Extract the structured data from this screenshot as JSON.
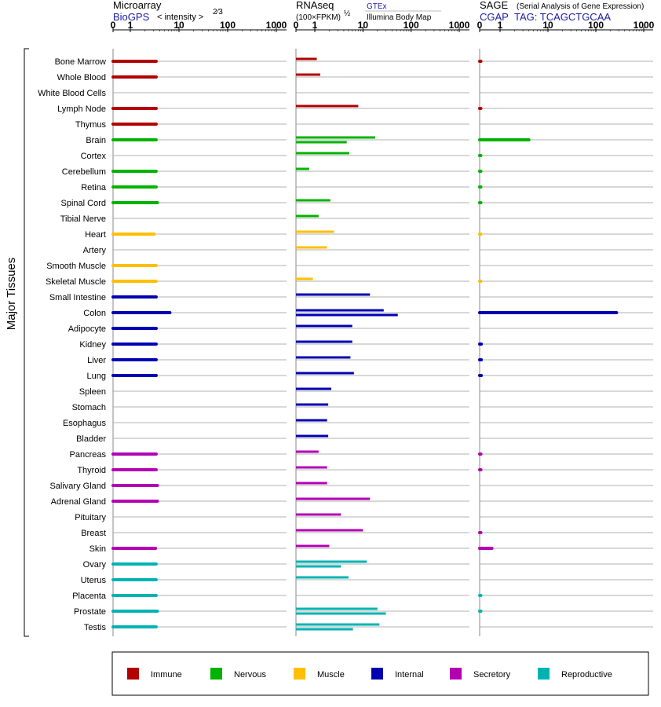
{
  "panels": {
    "microarray": {
      "title": "Microarray",
      "source": "BioGPS",
      "metric": "< intensity >",
      "metric_sup": "2⁄3"
    },
    "rnaseq": {
      "title": "RNAseq",
      "metric": "(100×FPKM)",
      "metric_sup": "½",
      "source_a": "GTEx",
      "source_b": "Illumina Body Map"
    },
    "sage": {
      "title": "SAGE",
      "subtitle": "(Serial Analysis of Gene Expression)",
      "source": "CGAP",
      "tag": "TAG: TCAGCTGCAA"
    }
  },
  "ylabel": "Major Tissues",
  "tick_labels": [
    "0",
    "1",
    "10",
    "100",
    "1000"
  ],
  "colors": {
    "Immune": "#b30000",
    "Nervous": "#00b300",
    "Muscle": "#ffbf00",
    "Internal": "#0000b3",
    "Secretory": "#b300b3",
    "Reproductive": "#00b3b3"
  },
  "legend": [
    {
      "label": "Immune",
      "color": "#b30000"
    },
    {
      "label": "Nervous",
      "color": "#00b300"
    },
    {
      "label": "Muscle",
      "color": "#ffbf00"
    },
    {
      "label": "Internal",
      "color": "#0000b3"
    },
    {
      "label": "Secretory",
      "color": "#b300b3"
    },
    {
      "label": "Reproductive",
      "color": "#00b3b3"
    }
  ],
  "chart_data": {
    "type": "bar",
    "scale": "transformed axis with ticks 0, 1, 10, 100, 1000",
    "categories": [
      "Bone Marrow",
      "Whole Blood",
      "White Blood Cells",
      "Lymph Node",
      "Thymus",
      "Brain",
      "Cortex",
      "Cerebellum",
      "Retina",
      "Spinal Cord",
      "Tibial Nerve",
      "Heart",
      "Artery",
      "Smooth Muscle",
      "Skeletal Muscle",
      "Small Intestine",
      "Colon",
      "Adipocyte",
      "Kidney",
      "Liver",
      "Lung",
      "Spleen",
      "Stomach",
      "Esophagus",
      "Bladder",
      "Pancreas",
      "Thyroid",
      "Salivary Gland",
      "Adrenal Gland",
      "Pituitary",
      "Breast",
      "Skin",
      "Ovary",
      "Uterus",
      "Placenta",
      "Prostate",
      "Testis"
    ],
    "groups": [
      "Immune",
      "Immune",
      "Immune",
      "Immune",
      "Immune",
      "Nervous",
      "Nervous",
      "Nervous",
      "Nervous",
      "Nervous",
      "Nervous",
      "Muscle",
      "Muscle",
      "Muscle",
      "Muscle",
      "Internal",
      "Internal",
      "Internal",
      "Internal",
      "Internal",
      "Internal",
      "Internal",
      "Internal",
      "Internal",
      "Internal",
      "Secretory",
      "Secretory",
      "Secretory",
      "Secretory",
      "Secretory",
      "Secretory",
      "Secretory",
      "Reproductive",
      "Reproductive",
      "Reproductive",
      "Reproductive",
      "Reproductive"
    ],
    "microarray": [
      3.4,
      3.4,
      null,
      3.4,
      3.4,
      3.4,
      null,
      3.4,
      3.4,
      3.6,
      null,
      3.1,
      null,
      3.4,
      3.4,
      3.4,
      6.5,
      3.4,
      3.4,
      3.4,
      3.4,
      null,
      null,
      null,
      null,
      3.4,
      3.4,
      3.6,
      3.6,
      null,
      null,
      3.3,
      3.4,
      3.4,
      3.4,
      3.6,
      3.4
    ],
    "rnaseq_gtex": [
      null,
      null,
      null,
      null,
      null,
      4.6,
      null,
      null,
      null,
      null,
      null,
      null,
      null,
      null,
      null,
      null,
      53,
      null,
      null,
      null,
      null,
      null,
      null,
      null,
      null,
      null,
      null,
      null,
      null,
      null,
      null,
      null,
      3.5,
      null,
      null,
      30,
      6.2
    ],
    "rnaseq_ibm": [
      1.1,
      1.3,
      null,
      8,
      null,
      18,
      5.2,
      0.7,
      null,
      2.1,
      1.2,
      2.5,
      1.8,
      null,
      0.9,
      14,
      27,
      6,
      6,
      5.5,
      6.5,
      2.2,
      1.9,
      1.8,
      1.9,
      1.2,
      1.8,
      1.8,
      14,
      3.5,
      10,
      2,
      12,
      5,
      null,
      20,
      22
    ],
    "sage": [
      0.06,
      null,
      null,
      0.05,
      null,
      4,
      0.02,
      0.02,
      0.02,
      0.03,
      null,
      0.02,
      null,
      null,
      0.02,
      null,
      270,
      null,
      0.08,
      0.08,
      0.08,
      null,
      null,
      null,
      null,
      0.06,
      0.06,
      null,
      null,
      null,
      0.04,
      0.6,
      null,
      null,
      0.02,
      0.02,
      null
    ]
  }
}
